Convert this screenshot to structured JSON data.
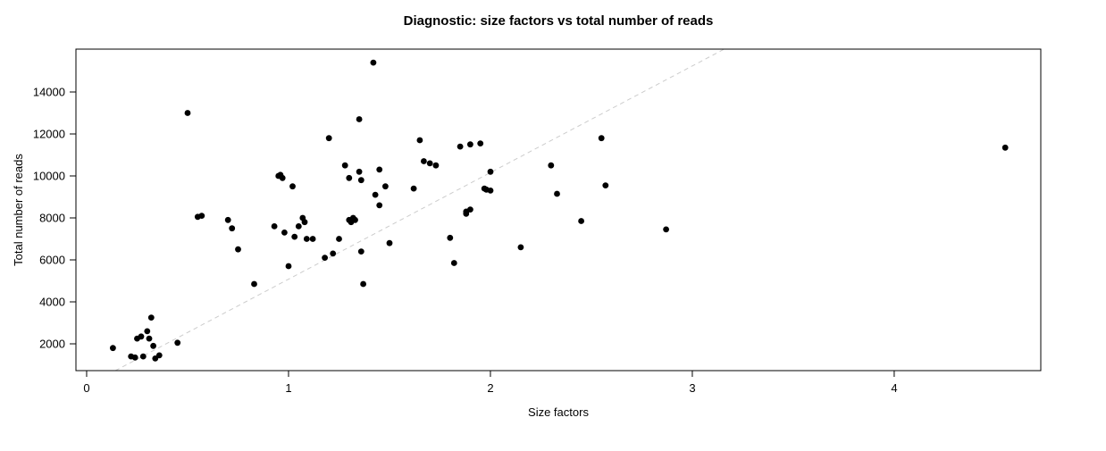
{
  "chart_data": {
    "type": "scatter",
    "title": "Diagnostic: size factors vs total number of reads",
    "xlabel": "Size factors",
    "ylabel": "Total number of reads",
    "xlim": [
      -0.053,
      4.726
    ],
    "ylim": [
      723,
      16042
    ],
    "xticks": [
      0,
      1,
      2,
      3,
      4
    ],
    "yticks": [
      2000,
      4000,
      6000,
      8000,
      10000,
      12000,
      14000
    ],
    "grid": false,
    "legend": "none",
    "point_color": "#000000",
    "point_radius": 3.4,
    "reference_line": {
      "slope": 5080,
      "intercept": 0,
      "color": "#cccccc",
      "style": "dashed"
    },
    "points": [
      [
        0.13,
        1800
      ],
      [
        0.22,
        1400
      ],
      [
        0.24,
        1350
      ],
      [
        0.25,
        2250
      ],
      [
        0.27,
        2350
      ],
      [
        0.28,
        1400
      ],
      [
        0.3,
        2600
      ],
      [
        0.31,
        2250
      ],
      [
        0.32,
        3250
      ],
      [
        0.33,
        1900
      ],
      [
        0.34,
        1300
      ],
      [
        0.36,
        1450
      ],
      [
        0.45,
        2050
      ],
      [
        0.5,
        13000
      ],
      [
        0.55,
        8050
      ],
      [
        0.57,
        8100
      ],
      [
        0.7,
        7900
      ],
      [
        0.72,
        7500
      ],
      [
        0.75,
        6500
      ],
      [
        0.83,
        4850
      ],
      [
        0.93,
        7600
      ],
      [
        0.95,
        10000
      ],
      [
        0.96,
        10050
      ],
      [
        0.97,
        9900
      ],
      [
        0.98,
        7300
      ],
      [
        1.0,
        5700
      ],
      [
        1.02,
        9500
      ],
      [
        1.03,
        7100
      ],
      [
        1.05,
        7600
      ],
      [
        1.07,
        8000
      ],
      [
        1.08,
        7800
      ],
      [
        1.09,
        7000
      ],
      [
        1.12,
        7000
      ],
      [
        1.18,
        6100
      ],
      [
        1.2,
        11800
      ],
      [
        1.22,
        6300
      ],
      [
        1.25,
        7000
      ],
      [
        1.28,
        10500
      ],
      [
        1.3,
        9900
      ],
      [
        1.3,
        7900
      ],
      [
        1.31,
        7800
      ],
      [
        1.32,
        8000
      ],
      [
        1.33,
        7900
      ],
      [
        1.35,
        12700
      ],
      [
        1.35,
        10200
      ],
      [
        1.36,
        9800
      ],
      [
        1.36,
        6400
      ],
      [
        1.37,
        4850
      ],
      [
        1.42,
        15400
      ],
      [
        1.43,
        9100
      ],
      [
        1.45,
        10300
      ],
      [
        1.45,
        8600
      ],
      [
        1.48,
        9500
      ],
      [
        1.5,
        6800
      ],
      [
        1.62,
        9400
      ],
      [
        1.65,
        11700
      ],
      [
        1.67,
        10700
      ],
      [
        1.7,
        10600
      ],
      [
        1.73,
        10500
      ],
      [
        1.8,
        7050
      ],
      [
        1.82,
        5850
      ],
      [
        1.85,
        11400
      ],
      [
        1.88,
        8300
      ],
      [
        1.88,
        8200
      ],
      [
        1.9,
        8400
      ],
      [
        1.9,
        11500
      ],
      [
        1.95,
        11550
      ],
      [
        1.97,
        9400
      ],
      [
        1.98,
        9350
      ],
      [
        2.0,
        10200
      ],
      [
        2.0,
        9300
      ],
      [
        2.15,
        6600
      ],
      [
        2.3,
        10500
      ],
      [
        2.33,
        9150
      ],
      [
        2.45,
        7850
      ],
      [
        2.55,
        11800
      ],
      [
        2.57,
        9550
      ],
      [
        2.87,
        7450
      ],
      [
        4.55,
        11350
      ]
    ]
  }
}
